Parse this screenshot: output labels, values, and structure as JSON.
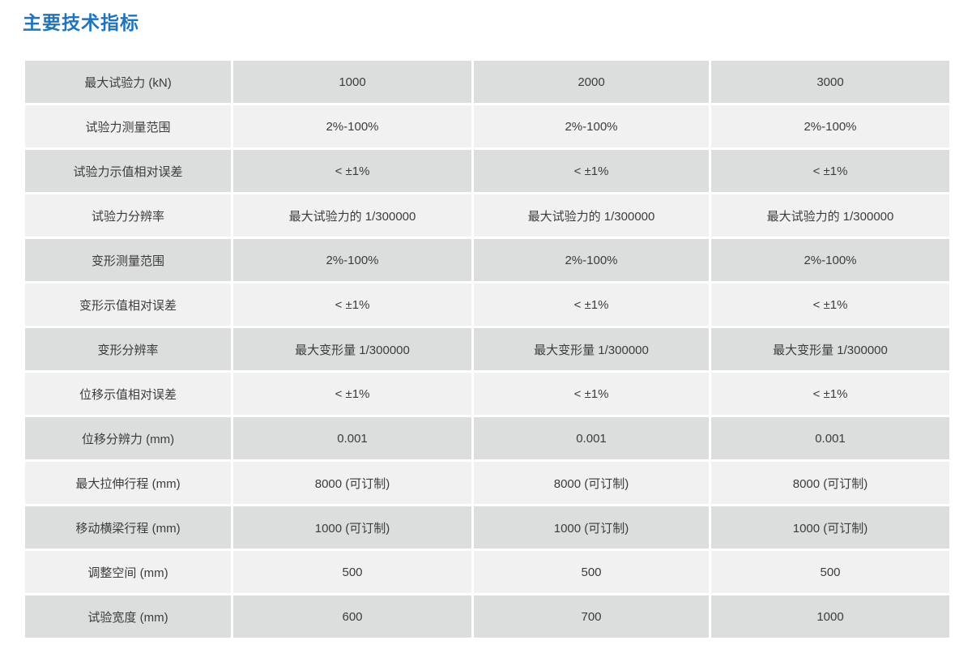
{
  "page": {
    "title": "主要技术指标"
  },
  "colors": {
    "title_blue": "#2173ba",
    "row_dark": "#dcdddd",
    "row_light": "#f1f1f1",
    "cell_text": "#3c3c3c",
    "background": "#ffffff"
  },
  "table": {
    "rows": [
      {
        "label": "最大试验力 (kN)",
        "values": [
          "1000",
          "2000",
          "3000"
        ]
      },
      {
        "label": "试验力测量范围",
        "values": [
          "2%-100%",
          "2%-100%",
          "2%-100%"
        ]
      },
      {
        "label": "试验力示值相对误差",
        "values": [
          "< ±1%",
          "< ±1%",
          "< ±1%"
        ]
      },
      {
        "label": "试验力分辨率",
        "values": [
          "最大试验力的 1/300000",
          "最大试验力的 1/300000",
          "最大试验力的 1/300000"
        ]
      },
      {
        "label": "变形测量范围",
        "values": [
          "2%-100%",
          "2%-100%",
          "2%-100%"
        ]
      },
      {
        "label": "变形示值相对误差",
        "values": [
          "< ±1%",
          "< ±1%",
          "< ±1%"
        ]
      },
      {
        "label": "变形分辨率",
        "values": [
          "最大变形量 1/300000",
          "最大变形量 1/300000",
          "最大变形量 1/300000"
        ]
      },
      {
        "label": "位移示值相对误差",
        "values": [
          "< ±1%",
          "< ±1%",
          "< ±1%"
        ]
      },
      {
        "label": "位移分辨力 (mm)",
        "values": [
          "0.001",
          "0.001",
          "0.001"
        ]
      },
      {
        "label": "最大拉伸行程 (mm)",
        "values": [
          "8000 (可订制)",
          "8000 (可订制)",
          "8000 (可订制)"
        ]
      },
      {
        "label": "移动横梁行程 (mm)",
        "values": [
          "1000 (可订制)",
          "1000 (可订制)",
          "1000 (可订制)"
        ]
      },
      {
        "label": "调整空间 (mm)",
        "values": [
          "500",
          "500",
          "500"
        ]
      },
      {
        "label": "试验宽度 (mm)",
        "values": [
          "600",
          "700",
          "1000"
        ]
      }
    ]
  }
}
